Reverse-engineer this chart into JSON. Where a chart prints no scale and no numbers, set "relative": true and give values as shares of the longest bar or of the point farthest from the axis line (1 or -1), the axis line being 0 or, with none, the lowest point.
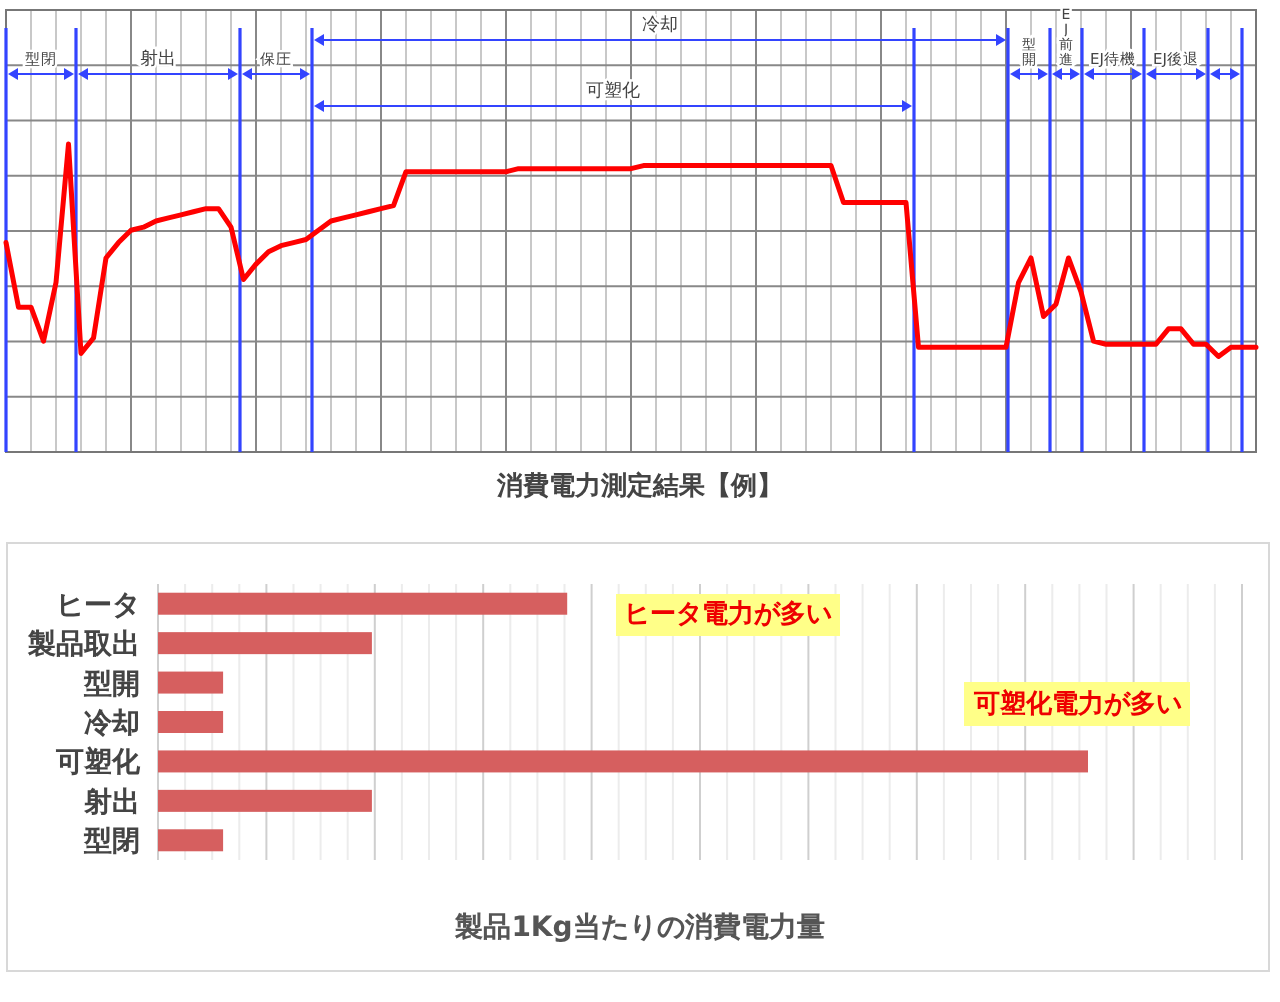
{
  "chart_data": [
    {
      "type": "line",
      "relative": true,
      "title": "消費電力測定結果【例】",
      "color": "#ff0000",
      "grid": true,
      "categories": [
        null,
        null,
        null,
        null,
        null,
        null,
        null,
        null,
        null,
        null,
        null,
        null,
        null,
        null,
        null,
        null,
        null,
        null,
        null,
        null,
        null,
        null,
        null,
        null,
        null,
        null,
        null,
        null,
        null,
        null,
        null,
        null,
        null,
        null,
        null,
        null,
        null,
        null,
        null,
        null,
        null,
        null,
        null,
        null,
        null,
        null,
        null,
        null,
        null,
        null,
        null,
        null,
        null,
        null,
        null,
        null,
        null,
        null,
        null,
        null,
        null,
        null,
        null,
        null,
        null,
        null,
        null,
        null,
        null,
        null,
        null,
        null,
        null,
        null,
        null,
        null,
        null,
        null,
        null,
        null,
        null,
        null,
        null,
        null,
        null,
        null,
        null,
        null,
        null,
        null,
        null,
        null,
        null,
        null,
        null,
        null,
        null,
        null,
        null,
        null,
        null
      ],
      "values": [
        0.68,
        0.47,
        0.47,
        0.36,
        0.55,
        1,
        0.32,
        0.37,
        0.63,
        0.68,
        0.72,
        0.73,
        0.75,
        0.76,
        0.77,
        0.78,
        0.79,
        0.79,
        0.73,
        0.56,
        0.61,
        0.65,
        0.67,
        0.68,
        0.69,
        0.72,
        0.75,
        0.76,
        0.77,
        0.78,
        0.79,
        0.8,
        0.91,
        0.91,
        0.91,
        0.91,
        0.91,
        0.91,
        0.91,
        0.91,
        0.91,
        0.92,
        0.92,
        0.92,
        0.92,
        0.92,
        0.92,
        0.92,
        0.92,
        0.92,
        0.92,
        0.93,
        0.93,
        0.93,
        0.93,
        0.93,
        0.93,
        0.93,
        0.93,
        0.93,
        0.93,
        0.93,
        0.93,
        0.93,
        0.93,
        0.93,
        0.93,
        0.81,
        0.81,
        0.81,
        0.81,
        0.81,
        0.81,
        0.34,
        0.34,
        0.34,
        0.34,
        0.34,
        0.34,
        0.34,
        0.34,
        0.55,
        0.63,
        0.44,
        0.48,
        0.63,
        0.52,
        0.36,
        0.35,
        0.35,
        0.35,
        0.35,
        0.35,
        0.4,
        0.4,
        0.35,
        0.35,
        0.31,
        0.34,
        0.34,
        0.34
      ],
      "annotations": [
        "型閉",
        "射出",
        "保圧",
        "冷却",
        "可塑化",
        "型開",
        "EJ前進",
        "EJ待機",
        "EJ後退"
      ]
    },
    {
      "type": "bar",
      "orientation": "horizontal",
      "relative": true,
      "title": "製品1Kg当たりの消費電力量",
      "color": "#d65f5f",
      "grid": "x",
      "categories": [
        "ヒータ",
        "製品取出",
        "型開",
        "冷却",
        "可塑化",
        "射出",
        "型閉"
      ],
      "values": [
        0.44,
        0.23,
        0.07,
        0.07,
        1,
        0.23,
        0.07
      ],
      "annotations": [
        "ヒータ電力が多い",
        "可塑化電力が多い"
      ]
    }
  ]
}
